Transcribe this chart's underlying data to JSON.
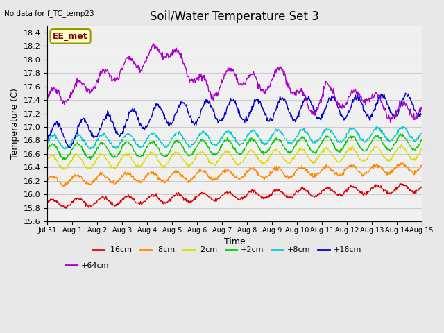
{
  "title": "Soil/Water Temperature Set 3",
  "xlabel": "Time",
  "ylabel": "Temperature (C)",
  "subtitle": "No data for f_TC_temp23",
  "annotation": "EE_met",
  "ylim": [
    15.6,
    18.5
  ],
  "series_order": [
    "-16cm",
    "-8cm",
    "-2cm",
    "+2cm",
    "+8cm",
    "+16cm",
    "+64cm"
  ],
  "series": {
    "-16cm": {
      "color": "#dd0000",
      "base": 15.86,
      "trend": 0.016,
      "amp": 0.06,
      "noise": 0.012
    },
    "-8cm": {
      "color": "#ff8800",
      "base": 16.2,
      "trend": 0.013,
      "amp": 0.07,
      "noise": 0.015
    },
    "-2cm": {
      "color": "#dddd00",
      "base": 16.47,
      "trend": 0.01,
      "amp": 0.1,
      "noise": 0.012
    },
    "+2cm": {
      "color": "#00cc00",
      "base": 16.63,
      "trend": 0.01,
      "amp": 0.11,
      "noise": 0.012
    },
    "+8cm": {
      "color": "#00cccc",
      "base": 16.77,
      "trend": 0.009,
      "amp": 0.1,
      "noise": 0.012
    },
    "+16cm": {
      "color": "#0000cc",
      "base": 16.97,
      "trend": 0.018,
      "amp": 0.16,
      "noise": 0.02
    },
    "+64cm": {
      "color": "#aa00cc",
      "base": 17.42,
      "trend": 0.0,
      "amp": 0.12,
      "noise": 0.025
    }
  },
  "xtick_labels": [
    "Jul 31",
    "Aug 1",
    "Aug 2",
    "Aug 3",
    "Aug 4",
    "Aug 5",
    "Aug 6",
    "Aug 7",
    "Aug 8",
    "Aug 9",
    "Aug 10",
    "Aug 11",
    "Aug 12",
    "Aug 13",
    "Aug 14",
    "Aug 15"
  ],
  "grid_color": "#cccccc",
  "bg_color": "#e8e8e8",
  "plot_bg": "#f0f0f0",
  "title_fontsize": 12,
  "axis_fontsize": 9,
  "tick_fontsize": 8,
  "legend_fontsize": 8
}
